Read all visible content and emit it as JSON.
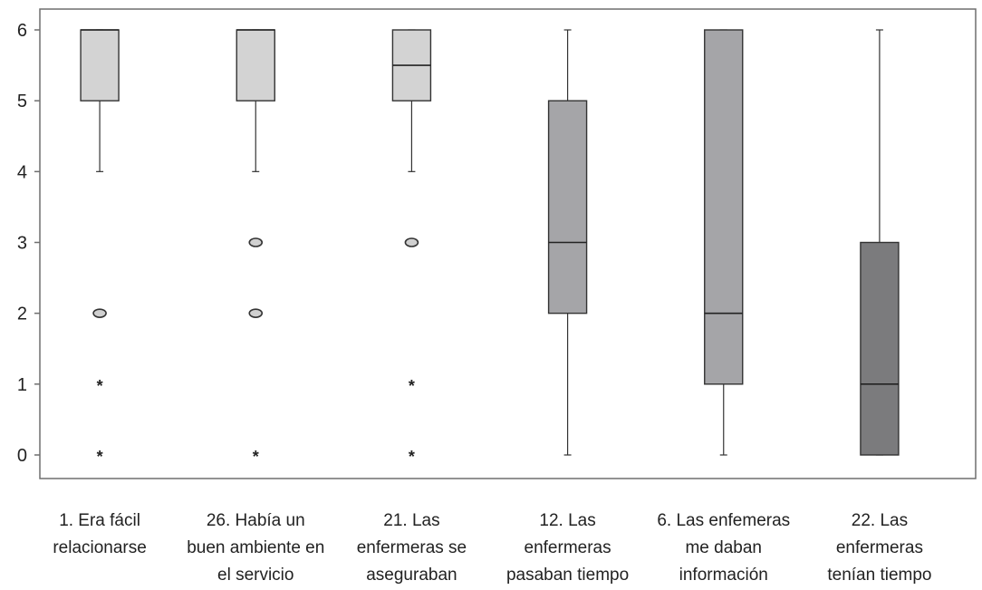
{
  "chart_data": {
    "type": "boxplot",
    "ylim": [
      0,
      6
    ],
    "yticks": [
      0,
      1,
      2,
      3,
      4,
      5,
      6
    ],
    "grid": false,
    "categories": [
      {
        "lines": [
          "1. Era fácil",
          "relacionarse"
        ]
      },
      {
        "lines": [
          "26. Había un",
          "buen ambiente en",
          "el servicio"
        ]
      },
      {
        "lines": [
          "21. Las",
          "enfermeras se",
          "aseguraban"
        ]
      },
      {
        "lines": [
          "12. Las",
          "enfermeras",
          "pasaban tiempo"
        ]
      },
      {
        "lines": [
          "6. Las enfemeras",
          "me daban",
          "información"
        ]
      },
      {
        "lines": [
          "22. Las",
          "enfermeras",
          "tenían tiempo"
        ]
      }
    ],
    "boxes": [
      {
        "whisker_low": 4,
        "q1": 5,
        "median": 6,
        "q3": 6,
        "whisker_high": 6,
        "outliers": [
          2
        ],
        "extremes": [
          1,
          0
        ],
        "fill": "#d3d3d3"
      },
      {
        "whisker_low": 4,
        "q1": 5,
        "median": 6,
        "q3": 6,
        "whisker_high": 6,
        "outliers": [
          3,
          2
        ],
        "extremes": [
          0
        ],
        "fill": "#d3d3d3"
      },
      {
        "whisker_low": 4,
        "q1": 5,
        "median": 5.5,
        "q3": 6,
        "whisker_high": 6,
        "outliers": [
          3
        ],
        "extremes": [
          1,
          0
        ],
        "fill": "#d3d3d3"
      },
      {
        "whisker_low": 0,
        "q1": 2,
        "median": 3,
        "q3": 5,
        "whisker_high": 6,
        "outliers": [],
        "extremes": [],
        "fill": "#a5a5a8"
      },
      {
        "whisker_low": 0,
        "q1": 1,
        "median": 2,
        "q3": 6,
        "whisker_high": 6,
        "outliers": [],
        "extremes": [],
        "fill": "#a5a5a8"
      },
      {
        "whisker_low": 0,
        "q1": 0,
        "median": 1,
        "q3": 3,
        "whisker_high": 6,
        "outliers": [],
        "extremes": [],
        "fill": "#7b7b7d"
      }
    ]
  }
}
